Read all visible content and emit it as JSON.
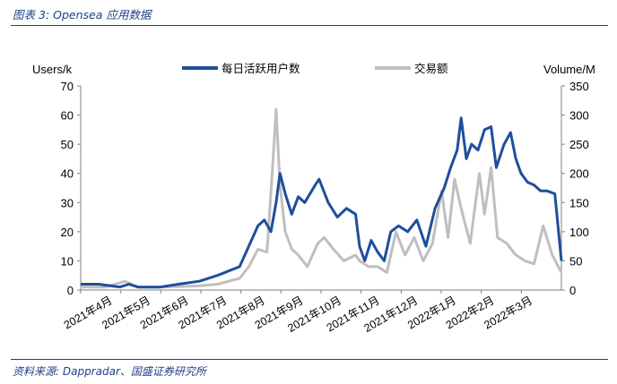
{
  "caption": "图表 3:  Opensea 应用数据",
  "source": "资料来源:  Dappradar、国盛证券研究所",
  "chart_data": {
    "type": "line",
    "y_left_label": "Users/k",
    "y_right_label": "Volume/M",
    "ylim_left": [
      0,
      70
    ],
    "ylim_right": [
      0,
      350
    ],
    "yticks_left": [
      "0",
      "10",
      "20",
      "30",
      "40",
      "50",
      "60",
      "70"
    ],
    "yticks_right": [
      "0",
      "50",
      "100",
      "150",
      "200",
      "250",
      "300",
      "350"
    ],
    "x_tick_labels": [
      "2021年4月",
      "2021年5月",
      "2021年6月",
      "2021年7月",
      "2021年8月",
      "2021年9月",
      "2021年10月",
      "2021年11月",
      "2021年12月",
      "2022年1月",
      "2022年2月",
      "2022年3月"
    ],
    "x_start": "2021-04-01",
    "x_end": "2022-04-05",
    "legend_position": "top",
    "series": [
      {
        "name": "每日活跃用户数",
        "axis": "left",
        "color": "#1f4e9c",
        "points": [
          [
            "2021-04-01",
            2
          ],
          [
            "2021-04-15",
            2
          ],
          [
            "2021-05-01",
            1
          ],
          [
            "2021-05-08",
            2
          ],
          [
            "2021-05-15",
            1
          ],
          [
            "2021-06-01",
            1
          ],
          [
            "2021-06-15",
            2
          ],
          [
            "2021-07-01",
            3
          ],
          [
            "2021-07-15",
            5
          ],
          [
            "2021-08-01",
            8
          ],
          [
            "2021-08-08",
            15
          ],
          [
            "2021-08-15",
            22
          ],
          [
            "2021-08-20",
            24
          ],
          [
            "2021-08-25",
            20
          ],
          [
            "2021-08-29",
            30
          ],
          [
            "2021-09-01",
            40
          ],
          [
            "2021-09-05",
            33
          ],
          [
            "2021-09-10",
            26
          ],
          [
            "2021-09-15",
            32
          ],
          [
            "2021-09-20",
            30
          ],
          [
            "2021-09-28",
            36
          ],
          [
            "2021-10-01",
            38
          ],
          [
            "2021-10-08",
            30
          ],
          [
            "2021-10-15",
            25
          ],
          [
            "2021-10-22",
            28
          ],
          [
            "2021-10-29",
            26
          ],
          [
            "2021-11-01",
            15
          ],
          [
            "2021-11-05",
            10
          ],
          [
            "2021-11-10",
            17
          ],
          [
            "2021-11-15",
            13
          ],
          [
            "2021-11-20",
            10
          ],
          [
            "2021-11-25",
            20
          ],
          [
            "2021-12-01",
            22
          ],
          [
            "2021-12-08",
            20
          ],
          [
            "2021-12-15",
            24
          ],
          [
            "2021-12-22",
            15
          ],
          [
            "2021-12-29",
            28
          ],
          [
            "2022-01-05",
            35
          ],
          [
            "2022-01-10",
            42
          ],
          [
            "2022-01-15",
            48
          ],
          [
            "2022-01-18",
            59
          ],
          [
            "2022-01-22",
            45
          ],
          [
            "2022-01-26",
            50
          ],
          [
            "2022-01-31",
            48
          ],
          [
            "2022-02-05",
            55
          ],
          [
            "2022-02-10",
            56
          ],
          [
            "2022-02-14",
            42
          ],
          [
            "2022-02-20",
            50
          ],
          [
            "2022-02-25",
            54
          ],
          [
            "2022-03-01",
            45
          ],
          [
            "2022-03-05",
            40
          ],
          [
            "2022-03-10",
            37
          ],
          [
            "2022-03-15",
            36
          ],
          [
            "2022-03-20",
            34
          ],
          [
            "2022-03-25",
            34
          ],
          [
            "2022-03-31",
            33
          ],
          [
            "2022-04-05",
            10
          ]
        ]
      },
      {
        "name": "交易额",
        "axis": "right",
        "color": "#bfbfbf",
        "points": [
          [
            "2021-04-01",
            5
          ],
          [
            "2021-04-20",
            5
          ],
          [
            "2021-05-05",
            15
          ],
          [
            "2021-05-15",
            5
          ],
          [
            "2021-06-01",
            5
          ],
          [
            "2021-07-01",
            7
          ],
          [
            "2021-07-15",
            10
          ],
          [
            "2021-08-01",
            20
          ],
          [
            "2021-08-08",
            40
          ],
          [
            "2021-08-15",
            70
          ],
          [
            "2021-08-22",
            65
          ],
          [
            "2021-08-26",
            200
          ],
          [
            "2021-08-29",
            310
          ],
          [
            "2021-09-01",
            180
          ],
          [
            "2021-09-05",
            100
          ],
          [
            "2021-09-10",
            70
          ],
          [
            "2021-09-15",
            60
          ],
          [
            "2021-09-22",
            40
          ],
          [
            "2021-09-30",
            80
          ],
          [
            "2021-10-05",
            90
          ],
          [
            "2021-10-12",
            70
          ],
          [
            "2021-10-20",
            50
          ],
          [
            "2021-10-29",
            60
          ],
          [
            "2021-11-01",
            50
          ],
          [
            "2021-11-08",
            40
          ],
          [
            "2021-11-15",
            40
          ],
          [
            "2021-11-22",
            30
          ],
          [
            "2021-11-29",
            100
          ],
          [
            "2021-12-06",
            60
          ],
          [
            "2021-12-13",
            90
          ],
          [
            "2021-12-20",
            50
          ],
          [
            "2021-12-27",
            80
          ],
          [
            "2022-01-03",
            170
          ],
          [
            "2022-01-08",
            90
          ],
          [
            "2022-01-13",
            190
          ],
          [
            "2022-01-18",
            140
          ],
          [
            "2022-01-25",
            80
          ],
          [
            "2022-02-01",
            200
          ],
          [
            "2022-02-05",
            130
          ],
          [
            "2022-02-10",
            210
          ],
          [
            "2022-02-15",
            90
          ],
          [
            "2022-02-22",
            80
          ],
          [
            "2022-03-01",
            60
          ],
          [
            "2022-03-08",
            50
          ],
          [
            "2022-03-15",
            45
          ],
          [
            "2022-03-22",
            110
          ],
          [
            "2022-03-29",
            60
          ],
          [
            "2022-04-05",
            30
          ]
        ]
      }
    ]
  }
}
